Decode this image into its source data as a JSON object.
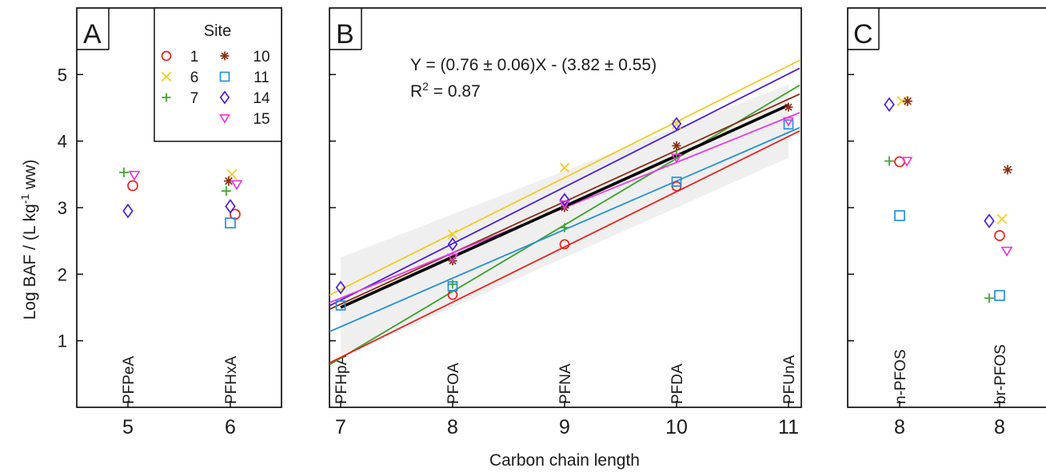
{
  "figure": {
    "ylabel": "Log BAF / (L kg-1 ww)",
    "ylabel_main": "Log BAF / (L kg",
    "ylabel_sup": "-1",
    "ylabel_tail": " ww)",
    "xlabel": "Carbon chain length"
  },
  "colors": {
    "1": "#e8231f",
    "6": "#f2cc1c",
    "7": "#3aa32b",
    "10": "#8b2e12",
    "11": "#2591d9",
    "14": "#4b1fd6",
    "15": "#e63be0",
    "overall": "#000000",
    "band": "#efefef"
  },
  "legend": {
    "title": "Site",
    "entries": [
      {
        "site": "1",
        "marker": "circle"
      },
      {
        "site": "6",
        "marker": "x"
      },
      {
        "site": "7",
        "marker": "plus"
      },
      {
        "site": "10",
        "marker": "star"
      },
      {
        "site": "11",
        "marker": "square"
      },
      {
        "site": "14",
        "marker": "diamond"
      },
      {
        "site": "15",
        "marker": "triangle-down"
      }
    ]
  },
  "chart_data": [
    {
      "panel": "A",
      "type": "scatter",
      "ylim": [
        0,
        6
      ],
      "yticks": [
        1,
        2,
        3,
        4,
        5
      ],
      "xticks": [
        5,
        6
      ],
      "xlim": [
        4.5,
        6.5
      ],
      "compound_labels": [
        {
          "x": 5,
          "text": "PFPeA"
        },
        {
          "x": 6,
          "text": "PFHxA"
        }
      ],
      "series": [
        {
          "site": "1",
          "points": [
            [
              5,
              3.33
            ],
            [
              6,
              2.9
            ]
          ]
        },
        {
          "site": "6",
          "points": [
            [
              6,
              3.5
            ]
          ]
        },
        {
          "site": "7",
          "points": [
            [
              5,
              3.53
            ],
            [
              6,
              3.25
            ]
          ]
        },
        {
          "site": "10",
          "points": [
            [
              6,
              3.4
            ]
          ]
        },
        {
          "site": "11",
          "points": [
            [
              6,
              2.77
            ]
          ]
        },
        {
          "site": "14",
          "points": [
            [
              5,
              2.95
            ],
            [
              6,
              3.02
            ]
          ]
        },
        {
          "site": "15",
          "points": [
            [
              5,
              3.49
            ],
            [
              6,
              3.35
            ]
          ]
        }
      ]
    },
    {
      "panel": "B",
      "type": "scatter",
      "xlim": [
        7,
        11.1
      ],
      "ylim": [
        0,
        6
      ],
      "xticks": [
        7,
        8,
        9,
        10,
        11
      ],
      "compound_labels": [
        {
          "x": 7,
          "text": "PFHpA"
        },
        {
          "x": 8,
          "text": "PFOA"
        },
        {
          "x": 9,
          "text": "PFNA"
        },
        {
          "x": 10,
          "text": "PFDA"
        },
        {
          "x": 11,
          "text": "PFUnA"
        }
      ],
      "equation": "Y = (0.76 ± 0.06)X - (3.82 ± 0.55)",
      "r2_label": "R",
      "r2_sup": "2",
      "r2_value": " = 0.87",
      "overall_fit": {
        "slope": 0.76,
        "intercept": -3.82,
        "x_range": [
          7,
          11
        ]
      },
      "confidence_band": {
        "x": [
          7,
          11
        ],
        "upper": [
          2.25,
          4.85
        ],
        "lower": [
          0.75,
          3.75
        ]
      },
      "site_fits": [
        {
          "site": "6",
          "slope": 0.84,
          "intercept": -4.11
        },
        {
          "site": "14",
          "slope": 0.85,
          "intercept": -4.34
        },
        {
          "site": "7",
          "slope": 1.0,
          "intercept": -6.26
        },
        {
          "site": "10",
          "slope": 0.77,
          "intercept": -3.84
        },
        {
          "site": "15",
          "slope": 0.68,
          "intercept": -3.12
        },
        {
          "site": "11",
          "slope": 0.73,
          "intercept": -3.9
        },
        {
          "site": "1",
          "slope": 0.83,
          "intercept": -5.06
        }
      ],
      "series": [
        {
          "site": "1",
          "points": [
            [
              8,
              1.69
            ],
            [
              9,
              2.45
            ],
            [
              10,
              3.32
            ]
          ]
        },
        {
          "site": "6",
          "points": [
            [
              8,
              2.6
            ],
            [
              9,
              3.6
            ],
            [
              10,
              4.25
            ]
          ]
        },
        {
          "site": "7",
          "points": [
            [
              8,
              1.85
            ],
            [
              9,
              2.7
            ],
            [
              10,
              3.8
            ]
          ]
        },
        {
          "site": "10",
          "points": [
            [
              8,
              2.2
            ],
            [
              9,
              3.0
            ],
            [
              10,
              3.93
            ],
            [
              11,
              4.51
            ]
          ]
        },
        {
          "site": "11",
          "points": [
            [
              7,
              1.53
            ],
            [
              8,
              1.82
            ],
            [
              10,
              3.39
            ],
            [
              11,
              4.25
            ]
          ]
        },
        {
          "site": "14",
          "points": [
            [
              7,
              1.8
            ],
            [
              8,
              2.45
            ],
            [
              9,
              3.12
            ],
            [
              10,
              4.26
            ]
          ]
        },
        {
          "site": "15",
          "points": [
            [
              8,
              2.25
            ],
            [
              9,
              3.05
            ],
            [
              10,
              3.75
            ],
            [
              11,
              4.3
            ]
          ]
        }
      ]
    },
    {
      "panel": "C",
      "type": "scatter",
      "ylim": [
        0,
        6
      ],
      "xticks": [
        8,
        8
      ],
      "compound_labels": [
        {
          "pos": 1,
          "text": "n-PFOS"
        },
        {
          "pos": 2,
          "text": "br-PFOS"
        }
      ],
      "series": [
        {
          "site": "1",
          "points": [
            [
              1,
              3.69
            ],
            [
              2,
              2.58
            ]
          ]
        },
        {
          "site": "6",
          "points": [
            [
              1,
              4.6
            ],
            [
              2,
              2.83
            ]
          ]
        },
        {
          "site": "7",
          "points": [
            [
              1,
              3.7
            ],
            [
              2,
              1.64
            ]
          ]
        },
        {
          "site": "10",
          "points": [
            [
              1,
              4.6
            ],
            [
              2,
              3.57
            ]
          ]
        },
        {
          "site": "11",
          "points": [
            [
              1,
              2.88
            ],
            [
              2,
              1.68
            ]
          ]
        },
        {
          "site": "14",
          "points": [
            [
              1,
              4.55
            ],
            [
              2,
              2.8
            ]
          ]
        },
        {
          "site": "15",
          "points": [
            [
              1,
              3.7
            ],
            [
              2,
              2.35
            ]
          ]
        }
      ]
    }
  ]
}
